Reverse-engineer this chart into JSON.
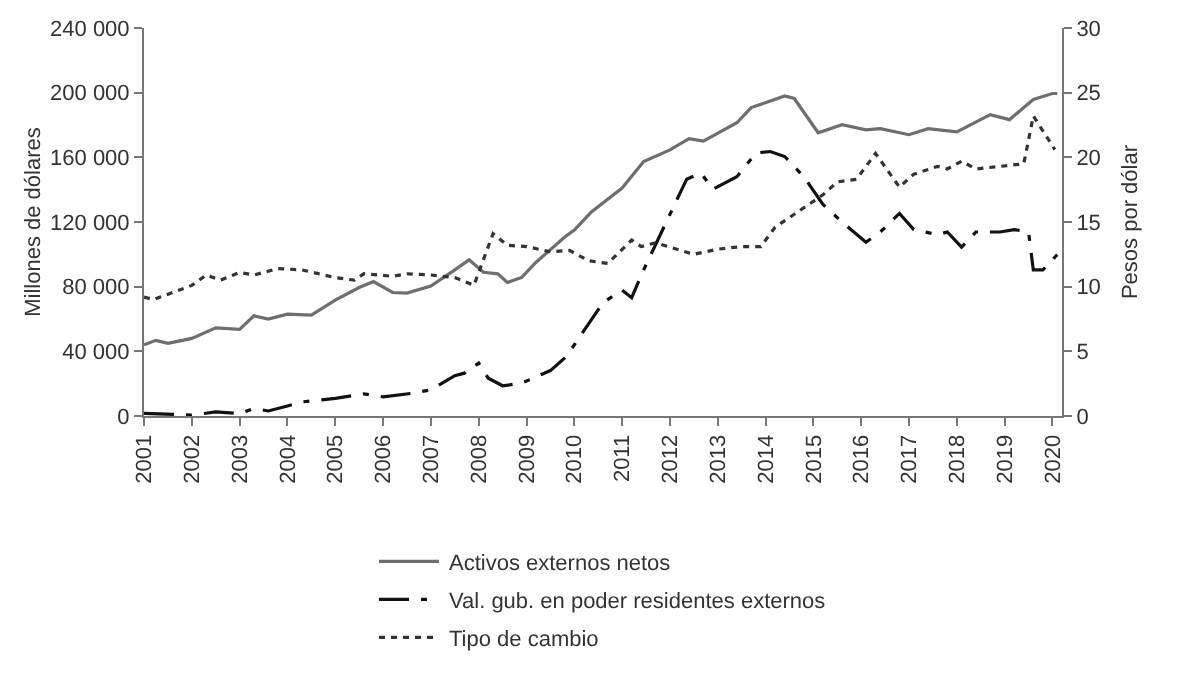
{
  "chart_data": {
    "type": "line",
    "ylabel": "Millones de dólares",
    "y2label": "Pesos por dólar",
    "xlim": [
      2001,
      2020.2
    ],
    "xticks": [
      2001,
      2002,
      2003,
      2004,
      2005,
      2006,
      2007,
      2008,
      2009,
      2010,
      2011,
      2012,
      2013,
      2014,
      2015,
      2016,
      2017,
      2018,
      2019,
      2020
    ],
    "ylim": [
      0,
      240000
    ],
    "yticks": [
      {
        "value": 0,
        "label": "0"
      },
      {
        "value": 40000,
        "label": "40 000"
      },
      {
        "value": 80000,
        "label": "80 000"
      },
      {
        "value": 120000,
        "label": "120 000"
      },
      {
        "value": 160000,
        "label": "160 000"
      },
      {
        "value": 200000,
        "label": "200 000"
      },
      {
        "value": 240000,
        "label": "240 000"
      }
    ],
    "y2lim": [
      0,
      30
    ],
    "y2ticks": [
      0,
      5,
      10,
      15,
      20,
      25,
      30
    ],
    "grid": false,
    "legend": "bottom",
    "marker": "none",
    "series": [
      {
        "name": "Activos externos netos",
        "color": "#6e6e6e",
        "line_style": "solid",
        "x": [
          2001,
          2001.25,
          2001.5,
          2002,
          2002.5,
          2003,
          2003.3,
          2003.6,
          2004,
          2004.5,
          2005,
          2005.5,
          2005.8,
          2006.2,
          2006.5,
          2007,
          2007.5,
          2007.8,
          2008.1,
          2008.4,
          2008.6,
          2008.9,
          2009.2,
          2009.8,
          2010,
          2010.35,
          2011,
          2011.45,
          2012,
          2012.4,
          2012.7,
          2013.4,
          2013.7,
          2014.1,
          2014.4,
          2014.6,
          2015.1,
          2015.6,
          2016.1,
          2016.4,
          2017,
          2017.4,
          2018,
          2018.7,
          2019.1,
          2019.6,
          2020,
          2020.1
        ],
        "values": [
          44000,
          46800,
          45000,
          48000,
          54500,
          53600,
          62000,
          60000,
          63000,
          62400,
          71700,
          79500,
          83200,
          76400,
          76000,
          80400,
          90400,
          96600,
          88900,
          87900,
          82600,
          85700,
          95100,
          110700,
          115000,
          126000,
          141000,
          157400,
          164600,
          171500,
          170000,
          181400,
          190800,
          194800,
          198000,
          196400,
          175200,
          180200,
          177000,
          177700,
          174000,
          177700,
          175800,
          186400,
          183300,
          195800,
          199500,
          199500
        ]
      },
      {
        "name": "Val. gub. en poder residentes externos",
        "color": "#111111",
        "line_style": "dashdot",
        "x": [
          2001,
          2002,
          2002.5,
          2003,
          2003.3,
          2003.6,
          2004,
          2004.3,
          2005,
          2005.6,
          2006,
          2006.6,
          2007,
          2007.5,
          2007.7,
          2008,
          2008.2,
          2008.5,
          2008.9,
          2009.5,
          2009.8,
          2010,
          2010.6,
          2011,
          2011.2,
          2011.45,
          2011.9,
          2012.35,
          2012.65,
          2012.9,
          2013.4,
          2013.8,
          2014.1,
          2014.4,
          2014.8,
          2015.2,
          2015.6,
          2016.1,
          2016.4,
          2016.8,
          2017.1,
          2017.6,
          2017.8,
          2018.1,
          2018.4,
          2018.9,
          2019.2,
          2019.5,
          2019.6,
          2019.8,
          2020.1
        ],
        "values": [
          1600,
          600,
          2500,
          1600,
          4700,
          3100,
          6200,
          8700,
          10900,
          13700,
          11800,
          14000,
          16200,
          24900,
          26500,
          32700,
          23400,
          18700,
          20300,
          28100,
          35900,
          44000,
          70100,
          77900,
          73200,
          90400,
          118500,
          146500,
          150200,
          140300,
          148000,
          162700,
          163600,
          160500,
          148000,
          130900,
          120000,
          107500,
          113800,
          125300,
          115300,
          112200,
          113800,
          104400,
          113800,
          113800,
          115300,
          113800,
          90400,
          90400,
          99800
        ]
      },
      {
        "name": "Tipo de cambio",
        "color": "#333333",
        "line_style": "dotted",
        "axis": "y2",
        "x": [
          2001,
          2001.2,
          2002,
          2002.3,
          2002.6,
          2003,
          2003.3,
          2003.8,
          2004.3,
          2005,
          2005.4,
          2005.6,
          2006.2,
          2006.5,
          2007,
          2007.5,
          2007.9,
          2008.3,
          2008.6,
          2009,
          2009.5,
          2009.9,
          2010.3,
          2010.7,
          2011.2,
          2011.4,
          2011.7,
          2012.5,
          2013,
          2013.5,
          2013.9,
          2014.2,
          2014.6,
          2015.2,
          2015.5,
          2015.9,
          2016.3,
          2016.8,
          2017.1,
          2017.6,
          2017.8,
          2018.1,
          2018.4,
          2018.9,
          2019.4,
          2019.6,
          2020.05
        ],
        "values": [
          9.2,
          9.0,
          10.1,
          10.9,
          10.5,
          11.1,
          10.9,
          11.4,
          11.3,
          10.7,
          10.5,
          11.0,
          10.8,
          11.0,
          10.9,
          10.7,
          10.1,
          14.1,
          13.2,
          13.1,
          12.7,
          12.8,
          12.0,
          11.8,
          13.6,
          13.1,
          13.4,
          12.5,
          12.9,
          13.1,
          13.1,
          14.6,
          15.6,
          17.1,
          18.1,
          18.3,
          20.3,
          17.7,
          18.7,
          19.3,
          19.1,
          19.7,
          19.1,
          19.3,
          19.5,
          23.2,
          20.6
        ]
      }
    ]
  }
}
